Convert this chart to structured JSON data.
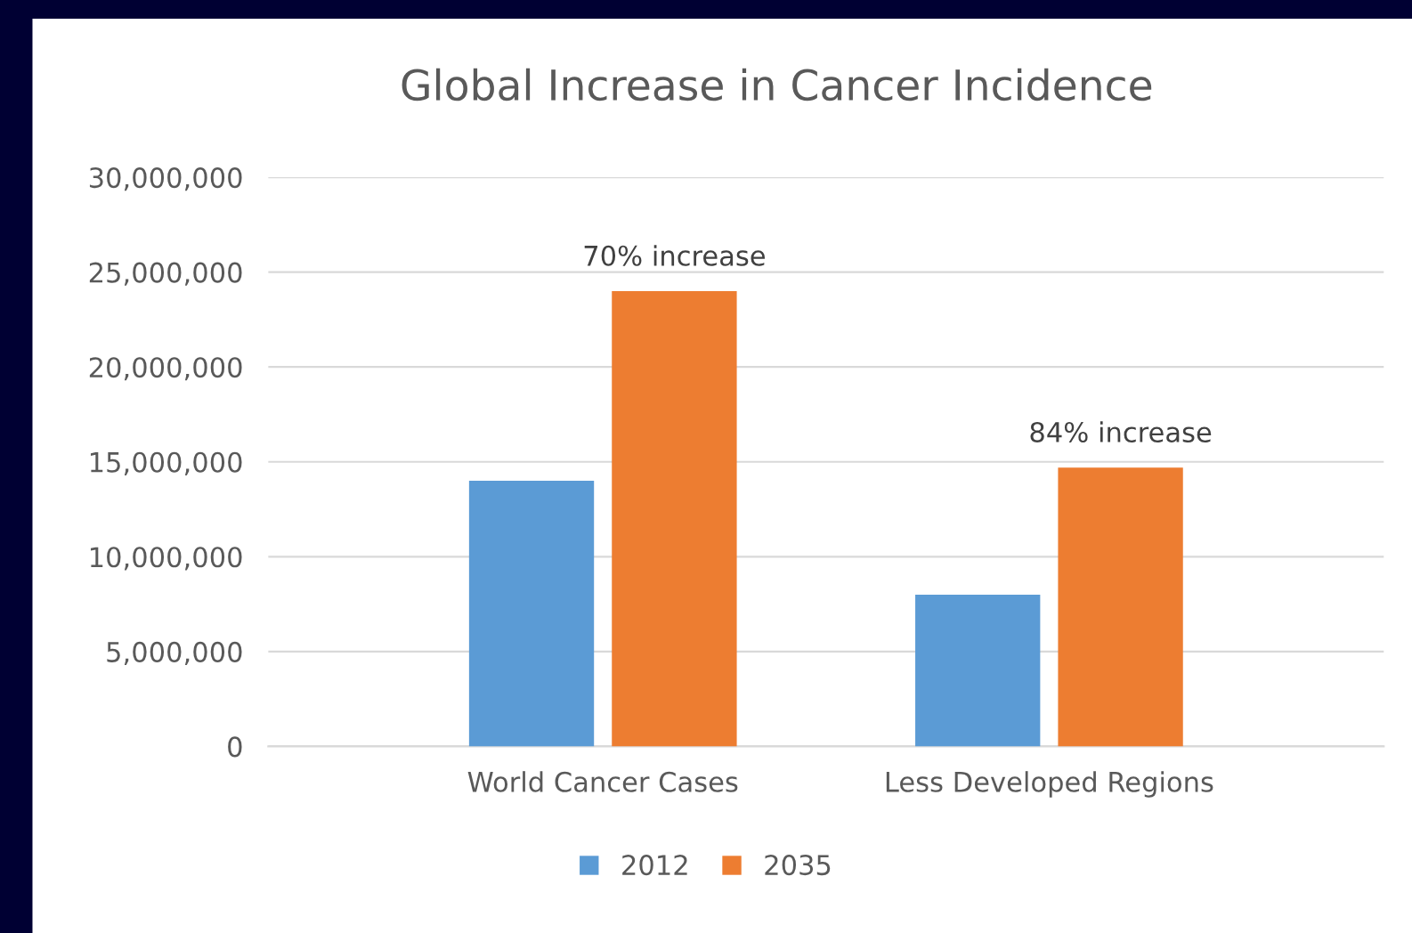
{
  "chart_data": {
    "type": "bar",
    "title": "Global Increase in Cancer Incidence",
    "categories": [
      "World Cancer Cases",
      "Less Developed Regions"
    ],
    "series": [
      {
        "name": "2012",
        "color": "#5b9bd5",
        "values": [
          14000000,
          8000000
        ]
      },
      {
        "name": "2035",
        "color": "#ed7d31",
        "values": [
          24000000,
          14700000
        ]
      }
    ],
    "ylim": [
      0,
      30000000
    ],
    "yticks": [
      {
        "value": 0,
        "label": "0"
      },
      {
        "value": 5000000,
        "label": "5,000,000"
      },
      {
        "value": 10000000,
        "label": "10,000,000"
      },
      {
        "value": 15000000,
        "label": "15,000,000"
      },
      {
        "value": 20000000,
        "label": "20,000,000"
      },
      {
        "value": 25000000,
        "label": "25,000,000"
      },
      {
        "value": 30000000,
        "label": "30,000,000"
      }
    ],
    "annotations": [
      "70% increase",
      "84% increase"
    ],
    "grid": "y",
    "legend": "bottom"
  }
}
